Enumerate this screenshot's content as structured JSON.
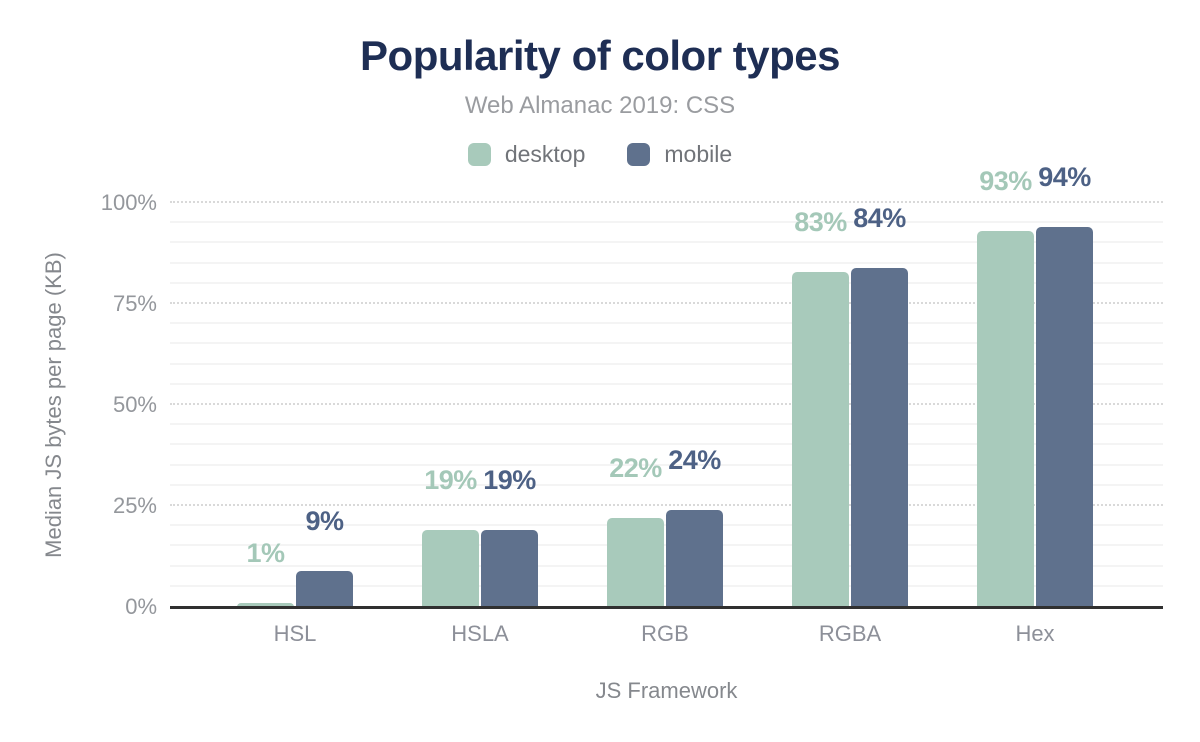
{
  "title": "Popularity of color types",
  "subtitle": "Web Almanac 2019: CSS",
  "axes": {
    "y_title": "Median JS bytes per page (KB)",
    "x_title": "JS Framework"
  },
  "colors": {
    "title_text": "#1e2e54",
    "subtitle_text": "#9a9ca0",
    "legend_text": "#717479",
    "tick_text": "#94979c",
    "axis_title_text": "#85888d",
    "axis_line": "#303030",
    "grid_major": "#d9d9d9",
    "grid_minor": "#f4f4f4",
    "desktop": "#a8cabb",
    "mobile": "#5f718d",
    "desktop_label": "#a4c8b8",
    "mobile_label": "#4d6185"
  },
  "chart_data": {
    "type": "bar",
    "title": "Popularity of color types",
    "subtitle": "Web Almanac 2019: CSS",
    "xlabel": "JS Framework",
    "ylabel": "Median JS bytes per page (KB)",
    "categories": [
      "HSL",
      "HSLA",
      "RGB",
      "RGBA",
      "Hex"
    ],
    "series": [
      {
        "name": "desktop",
        "values": [
          1,
          19,
          22,
          83,
          93
        ],
        "color": "#a8cabb",
        "label_color": "#a4c8b8"
      },
      {
        "name": "mobile",
        "values": [
          9,
          19,
          24,
          84,
          94
        ],
        "color": "#5f718d",
        "label_color": "#4d6185"
      }
    ],
    "value_label_format": "{v}%",
    "ylim": [
      0,
      100
    ],
    "yticks": [
      0,
      25,
      50,
      75,
      100
    ],
    "ytick_format": "{v}%",
    "y_minor_step": 5,
    "grid": "horizontal",
    "legend_position": "top-center"
  }
}
